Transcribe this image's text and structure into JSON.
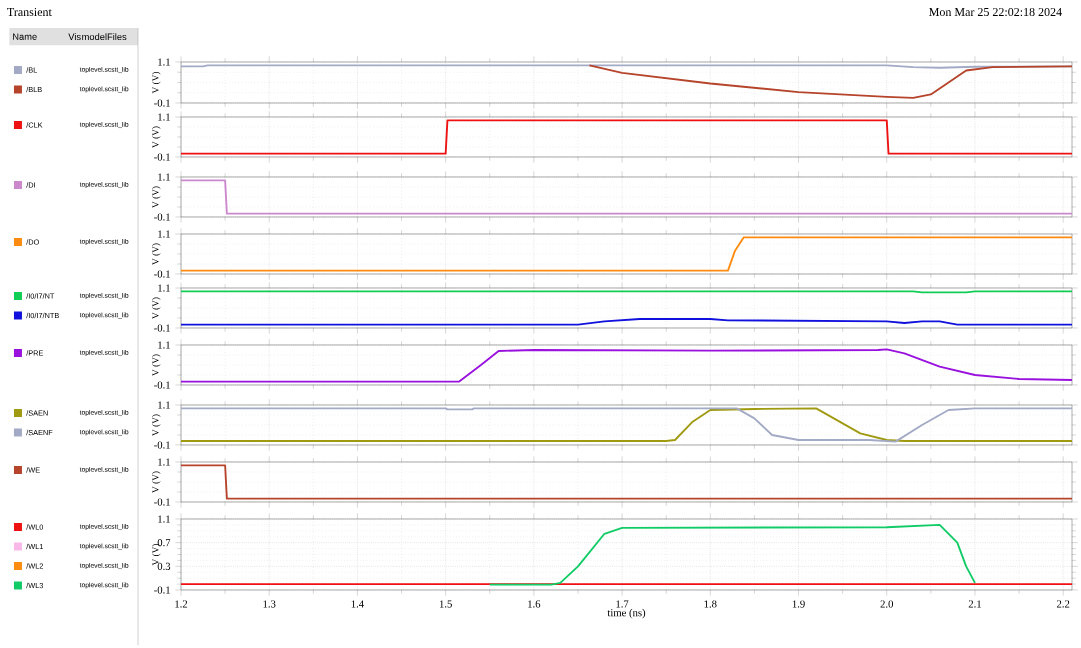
{
  "chart_data": [
    {
      "type": "other",
      "title": "Transient",
      "annotations": [
        "Name",
        "Vis",
        "modelFiles",
        "Mon Mar 25 22:02:18 2024"
      ]
    },
    {
      "type": "line",
      "ylabel": "V (V)",
      "xlim": [
        1.2,
        2.21
      ],
      "ylim": [
        -0.1,
        1.1
      ],
      "xticks": [
        1.2,
        1.3,
        1.4,
        1.5,
        1.6,
        1.7,
        1.8,
        1.9,
        2.0,
        2.1,
        2.2
      ],
      "yticks": [
        -0.1,
        1.1
      ],
      "tick_labels": "y",
      "grid": true,
      "legend": "left",
      "annotations": [
        "toplevel.scstt_lib",
        "toplevel.scstt_lib"
      ],
      "series": [
        {
          "name": "/BL",
          "color": "#a3aac6",
          "x": [
            1.2,
            1.225,
            1.23,
            2.0,
            2.03,
            2.06,
            2.1,
            2.21
          ],
          "values": [
            0.97,
            0.97,
            1.0,
            1.0,
            0.95,
            0.93,
            0.96,
            0.97
          ]
        },
        {
          "name": "/BLB",
          "color": "#b5442a",
          "x": [
            1.663,
            1.7,
            1.8,
            1.9,
            2.0,
            2.03,
            2.05,
            2.07,
            2.09,
            2.12,
            2.21
          ],
          "values": [
            1.0,
            0.78,
            0.47,
            0.22,
            0.08,
            0.05,
            0.15,
            0.5,
            0.85,
            0.95,
            0.97
          ]
        }
      ]
    },
    {
      "type": "line",
      "ylabel": "V (V)",
      "xlim": [
        1.2,
        2.21
      ],
      "ylim": [
        -0.1,
        1.1
      ],
      "xticks": [
        1.2,
        1.3,
        1.4,
        1.5,
        1.6,
        1.7,
        1.8,
        1.9,
        2.0,
        2.1,
        2.2
      ],
      "yticks": [
        -0.1,
        1.1
      ],
      "tick_labels": "y",
      "grid": true,
      "legend": "left",
      "annotations": [
        "toplevel.scstt_lib"
      ],
      "series": [
        {
          "name": "/CLK",
          "color": "#ee1111",
          "x": [
            1.2,
            1.5,
            1.502,
            2.0,
            2.002,
            2.21
          ],
          "values": [
            0.0,
            0.0,
            1.0,
            1.0,
            0.0,
            0.0
          ]
        }
      ]
    },
    {
      "type": "line",
      "ylabel": "V (V)",
      "xlim": [
        1.2,
        2.21
      ],
      "ylim": [
        -0.1,
        1.1
      ],
      "xticks": [
        1.2,
        1.3,
        1.4,
        1.5,
        1.6,
        1.7,
        1.8,
        1.9,
        2.0,
        2.1,
        2.2
      ],
      "yticks": [
        -0.1,
        1.1
      ],
      "tick_labels": "y",
      "grid": true,
      "legend": "left",
      "annotations": [
        "toplevel.scstt_lib"
      ],
      "series": [
        {
          "name": "/DI",
          "color": "#cc88cc",
          "x": [
            1.2,
            1.25,
            1.252,
            2.21
          ],
          "values": [
            1.0,
            1.0,
            0.0,
            0.0
          ]
        }
      ]
    },
    {
      "type": "line",
      "ylabel": "V (V)",
      "xlim": [
        1.2,
        2.21
      ],
      "ylim": [
        -0.1,
        1.1
      ],
      "xticks": [
        1.2,
        1.3,
        1.4,
        1.5,
        1.6,
        1.7,
        1.8,
        1.9,
        2.0,
        2.1,
        2.2
      ],
      "yticks": [
        -0.1,
        1.1
      ],
      "tick_labels": "y",
      "grid": true,
      "legend": "left",
      "annotations": [
        "toplevel.scstt_lib"
      ],
      "series": [
        {
          "name": "/DO",
          "color": "#ff8c10",
          "x": [
            1.2,
            1.82,
            1.828,
            1.838,
            2.21
          ],
          "values": [
            0.0,
            0.0,
            0.6,
            1.0,
            1.0
          ]
        }
      ]
    },
    {
      "type": "line",
      "ylabel": "V (V)",
      "xlim": [
        1.2,
        2.21
      ],
      "ylim": [
        -0.1,
        1.1
      ],
      "xticks": [
        1.2,
        1.3,
        1.4,
        1.5,
        1.6,
        1.7,
        1.8,
        1.9,
        2.0,
        2.1,
        2.2
      ],
      "yticks": [
        -0.1,
        1.1
      ],
      "tick_labels": "y",
      "grid": true,
      "legend": "left",
      "annotations": [
        "toplevel.scstt_lib",
        "toplevel.scstt_lib"
      ],
      "series": [
        {
          "name": "/I0/I7/NT",
          "color": "#11cc55",
          "x": [
            1.2,
            2.03,
            2.04,
            2.09,
            2.1,
            2.21
          ],
          "values": [
            1.0,
            1.0,
            0.97,
            0.97,
            1.0,
            1.0
          ]
        },
        {
          "name": "/I0/I7/NTB",
          "color": "#1111dd",
          "x": [
            1.2,
            1.65,
            1.68,
            1.72,
            1.8,
            1.82,
            2.0,
            2.02,
            2.04,
            2.06,
            2.08,
            2.21
          ],
          "values": [
            0.0,
            0.0,
            0.1,
            0.17,
            0.17,
            0.13,
            0.1,
            0.05,
            0.1,
            0.1,
            0.0,
            0.0
          ]
        }
      ]
    },
    {
      "type": "line",
      "ylabel": "V (V)",
      "xlim": [
        1.2,
        2.21
      ],
      "ylim": [
        -0.1,
        1.1
      ],
      "xticks": [
        1.2,
        1.3,
        1.4,
        1.5,
        1.6,
        1.7,
        1.8,
        1.9,
        2.0,
        2.1,
        2.2
      ],
      "yticks": [
        -0.1,
        1.1
      ],
      "tick_labels": "y",
      "grid": true,
      "legend": "left",
      "annotations": [
        "toplevel.scstt_lib"
      ],
      "series": [
        {
          "name": "/PRE",
          "color": "#9911dd",
          "x": [
            1.2,
            1.515,
            1.54,
            1.56,
            1.6,
            1.8,
            1.99,
            2.0,
            2.02,
            2.06,
            2.1,
            2.15,
            2.21
          ],
          "values": [
            0.0,
            0.0,
            0.5,
            0.92,
            0.95,
            0.93,
            0.95,
            0.97,
            0.85,
            0.45,
            0.2,
            0.08,
            0.05
          ]
        }
      ]
    },
    {
      "type": "line",
      "ylabel": "V (V)",
      "xlim": [
        1.2,
        2.21
      ],
      "ylim": [
        -0.1,
        1.1
      ],
      "xticks": [
        1.2,
        1.3,
        1.4,
        1.5,
        1.6,
        1.7,
        1.8,
        1.9,
        2.0,
        2.1,
        2.2
      ],
      "yticks": [
        -0.1,
        1.1
      ],
      "tick_labels": "y",
      "grid": true,
      "legend": "left",
      "annotations": [
        "toplevel.scstt_lib",
        "toplevel.scstt_lib"
      ],
      "series": [
        {
          "name": "/SAEN",
          "color": "#a09a10",
          "x": [
            1.2,
            1.75,
            1.76,
            1.78,
            1.8,
            1.85,
            1.92,
            1.94,
            1.97,
            2.0,
            2.02,
            2.21
          ],
          "values": [
            0.02,
            0.02,
            0.05,
            0.6,
            0.95,
            0.98,
            1.0,
            0.7,
            0.25,
            0.05,
            0.02,
            0.02
          ]
        },
        {
          "name": "/SAENF",
          "color": "#a3aac6",
          "x": [
            1.2,
            1.5,
            1.502,
            1.53,
            1.532,
            1.83,
            1.85,
            1.87,
            1.9,
            1.98,
            2.01,
            2.04,
            2.07,
            2.1,
            2.21
          ],
          "values": [
            1.0,
            1.0,
            0.97,
            0.97,
            1.0,
            1.0,
            0.7,
            0.2,
            0.05,
            0.05,
            0.0,
            0.5,
            0.95,
            1.0,
            1.0
          ]
        }
      ]
    },
    {
      "type": "line",
      "ylabel": "V (V)",
      "xlim": [
        1.2,
        2.21
      ],
      "ylim": [
        -0.1,
        1.1
      ],
      "xticks": [
        1.2,
        1.3,
        1.4,
        1.5,
        1.6,
        1.7,
        1.8,
        1.9,
        2.0,
        2.1,
        2.2
      ],
      "yticks": [
        -0.1,
        1.1
      ],
      "tick_labels": "y",
      "grid": true,
      "legend": "left",
      "annotations": [
        "toplevel.scstt_lib"
      ],
      "series": [
        {
          "name": "/WE",
          "color": "#b5442a",
          "x": [
            1.2,
            1.25,
            1.252,
            2.21
          ],
          "values": [
            1.0,
            1.0,
            0.0,
            0.0
          ]
        }
      ]
    },
    {
      "type": "line",
      "xlabel": "time (ns)",
      "ylabel": "V (V)",
      "xlim": [
        1.2,
        2.21
      ],
      "ylim": [
        -0.1,
        1.1
      ],
      "xticks": [
        1.2,
        1.3,
        1.4,
        1.5,
        1.6,
        1.7,
        1.8,
        1.9,
        {
          "value": 2.0,
          "label": "2.0"
        },
        2.1,
        2.2
      ],
      "yticks": [
        -0.1,
        0.3,
        0.7,
        1.1
      ],
      "grid": true,
      "legend": "left",
      "annotations": [
        "toplevel.scstt_lib",
        "toplevel.scstt_lib",
        "toplevel.scstt_lib",
        "toplevel.scstt_lib"
      ],
      "series": [
        {
          "name": "/WL0",
          "color": "#ee1111",
          "x": [
            1.2,
            2.21
          ],
          "values": [
            0.0,
            0.0
          ]
        },
        {
          "name": "/WL1",
          "color": "#f8b8e8",
          "values": [
            null
          ]
        },
        {
          "name": "/WL2",
          "color": "#ff8c10",
          "values": [
            null
          ]
        },
        {
          "name": "/WL3",
          "color": "#11cc66",
          "x": [
            1.55,
            1.62,
            1.63,
            1.65,
            1.68,
            1.7,
            2.0,
            2.06,
            2.08,
            2.09,
            2.1
          ],
          "values": [
            -0.01,
            -0.01,
            0.02,
            0.3,
            0.85,
            0.95,
            0.96,
            1.0,
            0.7,
            0.3,
            0.02
          ]
        }
      ]
    }
  ]
}
